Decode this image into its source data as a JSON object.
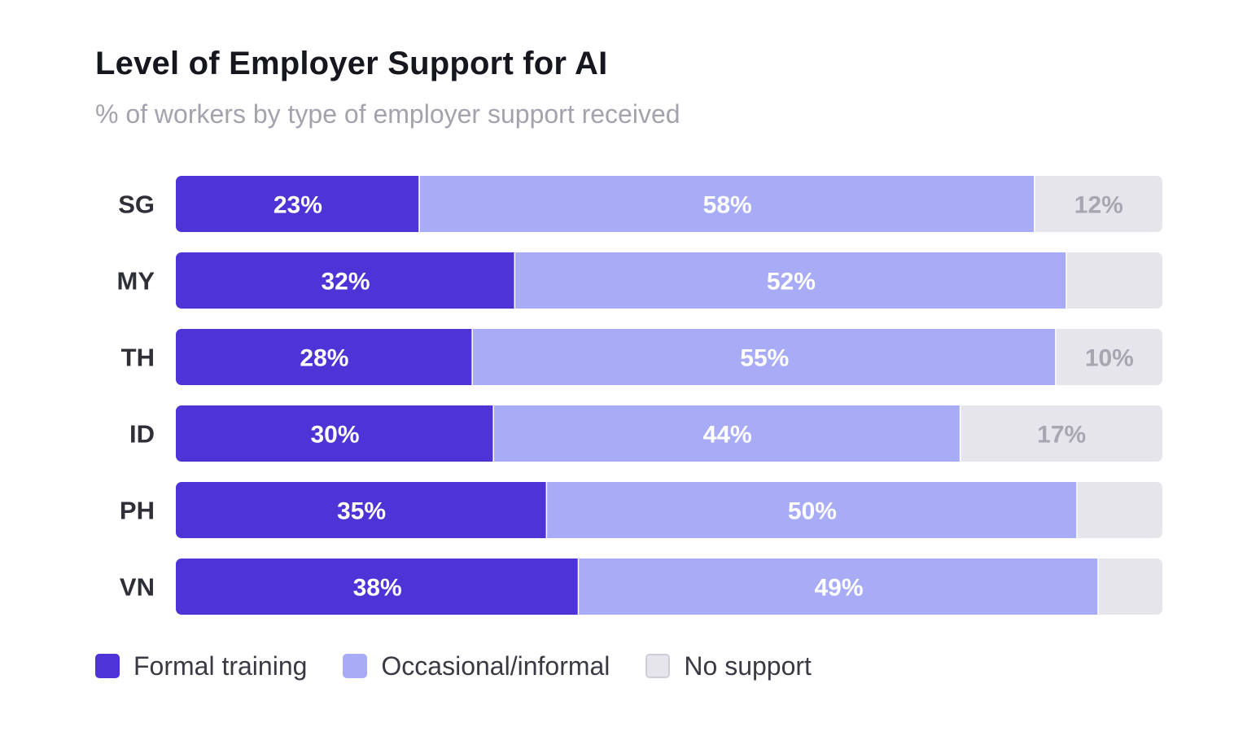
{
  "chart_data": {
    "type": "bar",
    "orientation": "horizontal",
    "stacked": true,
    "title": "Level of Employer Support for AI",
    "subtitle": "% of workers by type of employer support received",
    "categories": [
      "SG",
      "MY",
      "TH",
      "ID",
      "PH",
      "VN"
    ],
    "series": [
      {
        "name": "Formal training",
        "color": "#4e33d6",
        "label_color": "#ffffff",
        "values": [
          23,
          32,
          28,
          30,
          35,
          38
        ],
        "labels": [
          "23%",
          "32%",
          "28%",
          "30%",
          "35%",
          "38%"
        ]
      },
      {
        "name": "Occasional/informal",
        "color": "#a8acf6",
        "label_color": "#ffffff",
        "values": [
          58,
          52,
          55,
          44,
          50,
          49
        ],
        "labels": [
          "58%",
          "52%",
          "55%",
          "44%",
          "50%",
          "49%"
        ]
      },
      {
        "name": "No support",
        "color": "#e6e5ec",
        "label_color": "#a7a6b1",
        "values": [
          12,
          9,
          10,
          17,
          9,
          8
        ],
        "labels": [
          "12%",
          "",
          "10%",
          "17%",
          "",
          ""
        ]
      }
    ],
    "xlim": [
      0,
      93
    ],
    "grid": false,
    "legend_position": "bottom-left"
  }
}
